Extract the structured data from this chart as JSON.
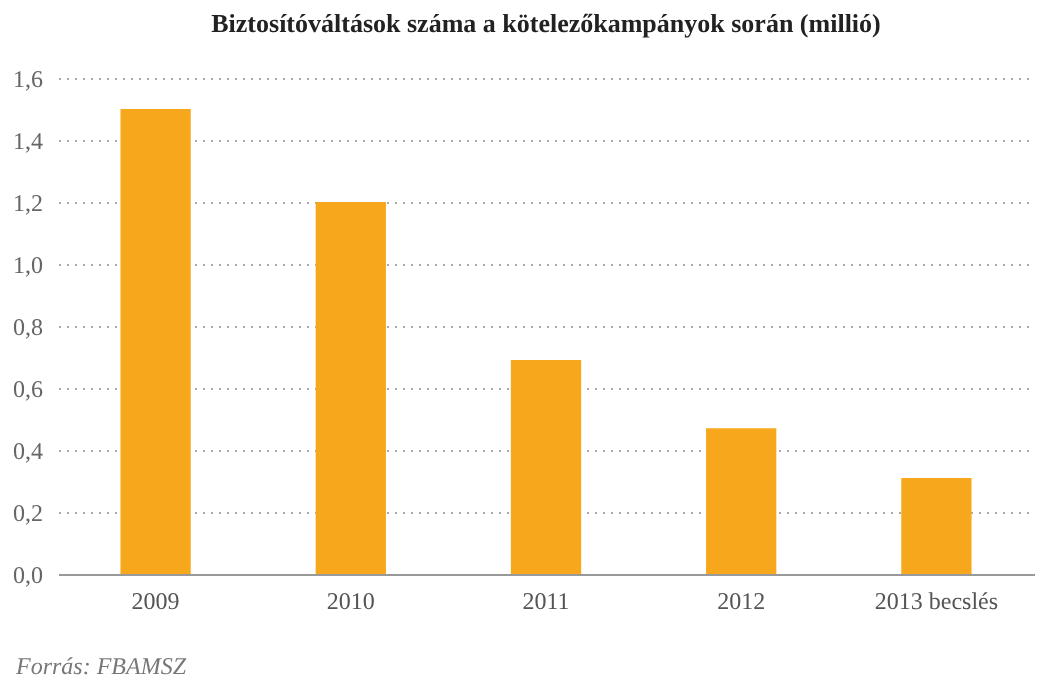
{
  "chart_data": {
    "type": "bar",
    "title": "Biztosítóváltások száma a kötelezőkampányok  során (millió)",
    "categories": [
      "2009",
      "2010",
      "2011",
      "2012",
      "2013 becslés"
    ],
    "values": [
      1.5,
      1.2,
      0.69,
      0.47,
      0.31
    ],
    "color": "#f7a71c",
    "ylim": [
      0,
      1.6
    ],
    "yticks": [
      {
        "value": 0,
        "label": "0,0"
      },
      {
        "value": 0.2,
        "label": "0,2"
      },
      {
        "value": 0.4,
        "label": "0,4"
      },
      {
        "value": 0.6,
        "label": "0,6"
      },
      {
        "value": 0.8,
        "label": "0,8"
      },
      {
        "value": 1,
        "label": "1,0"
      },
      {
        "value": 1.2,
        "label": "1,2"
      },
      {
        "value": 1.4,
        "label": "1,4"
      },
      {
        "value": 1.6,
        "label": "1,6"
      }
    ],
    "grid": "y",
    "annotations": [
      "Forrás: FBAMSZ"
    ]
  }
}
